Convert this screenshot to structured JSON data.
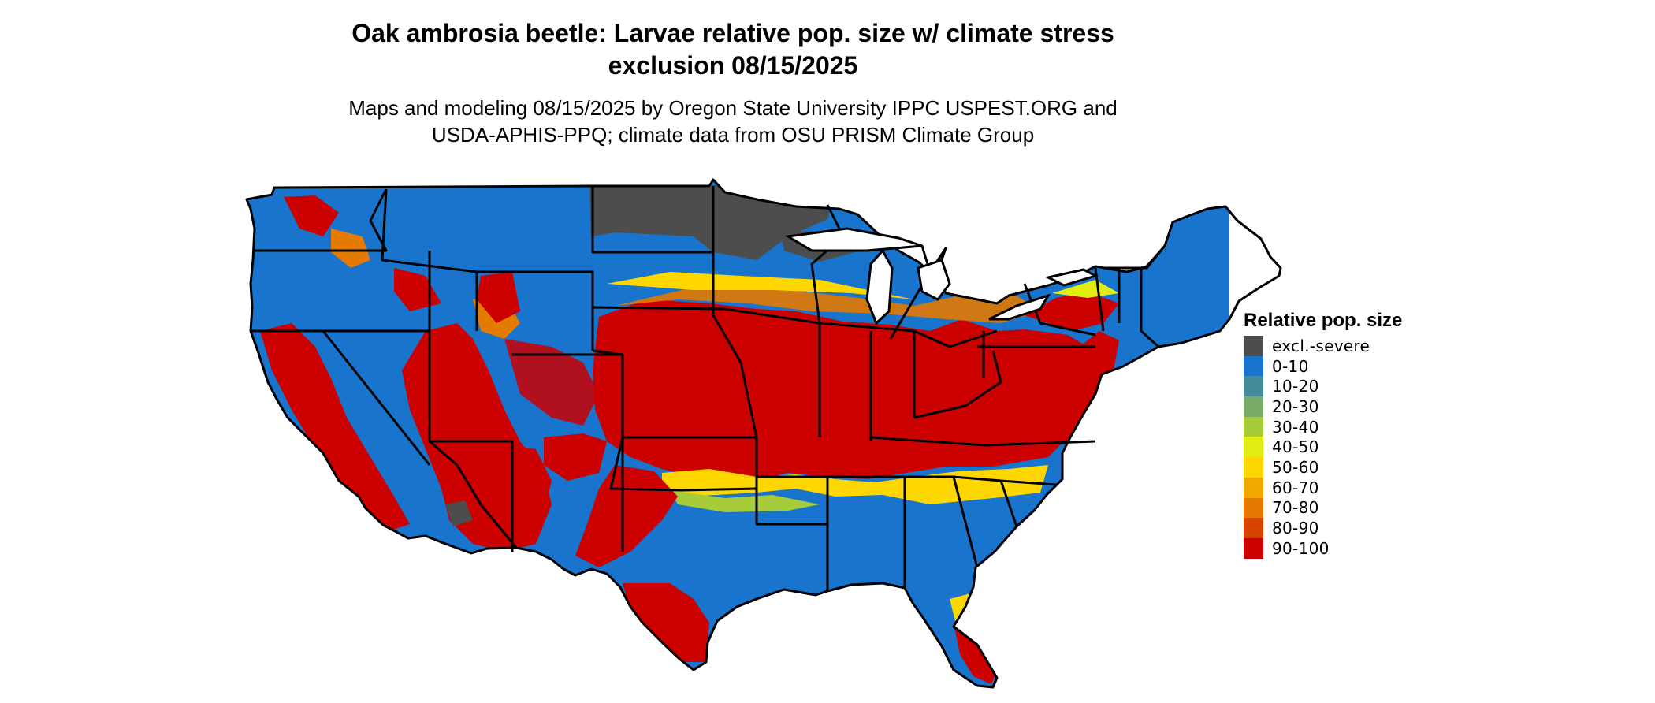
{
  "title_line1": "Oak ambrosia beetle: Larvae relative pop. size w/ climate stress",
  "title_line2": "exclusion 08/15/2025",
  "subtitle_line1": "Maps and modeling 08/15/2025 by Oregon State University IPPC USPEST.ORG and",
  "subtitle_line2": "USDA-APHIS-PPQ; climate data from OSU PRISM Climate Group",
  "legend": {
    "title": "Relative pop. size",
    "items": [
      {
        "label": "excl.-severe",
        "color": "#4d4d4d"
      },
      {
        "label": "0-10",
        "color": "#1874cd"
      },
      {
        "label": "10-20",
        "color": "#458b99"
      },
      {
        "label": "20-30",
        "color": "#7aac69"
      },
      {
        "label": "30-40",
        "color": "#a7cc3a"
      },
      {
        "label": "40-50",
        "color": "#e0ed13"
      },
      {
        "label": "50-60",
        "color": "#ffd700"
      },
      {
        "label": "60-70",
        "color": "#f0a800"
      },
      {
        "label": "70-80",
        "color": "#e47a00"
      },
      {
        "label": "80-90",
        "color": "#d84400"
      },
      {
        "label": "90-100",
        "color": "#cd0000"
      }
    ]
  }
}
